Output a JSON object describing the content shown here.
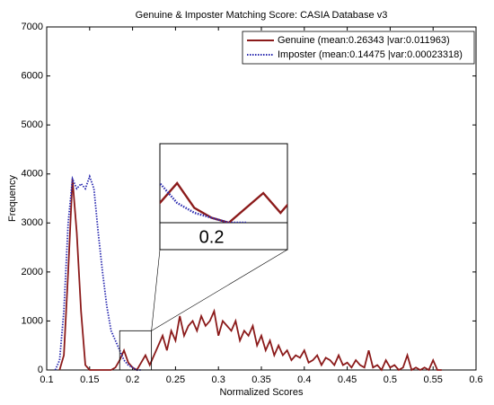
{
  "chart_data": {
    "type": "line",
    "title": "Genuine & Imposter Matching Score: CASIA Database v3",
    "x_label": "Normalized Scores",
    "y_label": "Frequency",
    "x": [
      0.1,
      0.105,
      0.11,
      0.115,
      0.12,
      0.125,
      0.13,
      0.135,
      0.14,
      0.145,
      0.15,
      0.155,
      0.16,
      0.165,
      0.17,
      0.175,
      0.18,
      0.185,
      0.19,
      0.195,
      0.2,
      0.205,
      0.21,
      0.215,
      0.22,
      0.225,
      0.23,
      0.235,
      0.24,
      0.245,
      0.25,
      0.255,
      0.26,
      0.265,
      0.27,
      0.275,
      0.28,
      0.285,
      0.29,
      0.295,
      0.3,
      0.305,
      0.31,
      0.315,
      0.32,
      0.325,
      0.33,
      0.335,
      0.34,
      0.345,
      0.35,
      0.355,
      0.36,
      0.365,
      0.37,
      0.375,
      0.38,
      0.385,
      0.39,
      0.395,
      0.4,
      0.405,
      0.41,
      0.415,
      0.42,
      0.425,
      0.43,
      0.435,
      0.44,
      0.445,
      0.45,
      0.455,
      0.46,
      0.465,
      0.47,
      0.475,
      0.48,
      0.485,
      0.49,
      0.495,
      0.5,
      0.505,
      0.51,
      0.515,
      0.52,
      0.525,
      0.53,
      0.535,
      0.54,
      0.545,
      0.55,
      0.555,
      0.56
    ],
    "series": [
      {
        "name": "Genuine (mean:0.26343 |var:0.011963)",
        "color": "#8b1a1a",
        "dash": "solid",
        "values": [
          null,
          null,
          null,
          0,
          300,
          2000,
          3900,
          2800,
          1200,
          100,
          0,
          0,
          0,
          0,
          0,
          0,
          50,
          200,
          400,
          150,
          50,
          0,
          150,
          300,
          100,
          300,
          500,
          700,
          400,
          800,
          600,
          1100,
          700,
          900,
          1000,
          800,
          1100,
          900,
          1000,
          1200,
          700,
          1000,
          900,
          800,
          1000,
          600,
          800,
          700,
          900,
          500,
          700,
          400,
          600,
          300,
          500,
          300,
          400,
          200,
          300,
          250,
          400,
          150,
          200,
          300,
          100,
          250,
          200,
          100,
          300,
          100,
          150,
          50,
          200,
          100,
          50,
          400,
          50,
          100,
          0,
          200,
          50,
          100,
          0,
          50,
          300,
          0,
          50,
          0,
          50,
          0,
          200,
          0,
          0
        ]
      },
      {
        "name": "Imposter (mean:0.14475 |var:0.00023318)",
        "color": "#2b2bb0",
        "dash": "dotted",
        "values": [
          null,
          null,
          0,
          200,
          1200,
          3000,
          3900,
          3700,
          3800,
          3700,
          3950,
          3700,
          2800,
          2000,
          1300,
          800,
          600,
          400,
          200,
          100,
          50,
          0,
          0,
          null,
          null,
          null,
          null,
          null,
          null,
          null,
          null,
          null,
          null,
          null,
          null,
          null,
          null,
          null,
          null,
          null,
          null,
          null,
          null,
          null,
          null,
          null,
          null,
          null,
          null,
          null,
          null,
          null,
          null,
          null,
          null,
          null,
          null,
          null,
          null,
          null,
          null,
          null,
          null,
          null,
          null,
          null,
          null,
          null,
          null,
          null,
          null,
          null,
          null,
          null,
          null,
          null,
          null,
          null,
          null,
          null,
          null,
          null,
          null,
          null,
          null,
          null,
          null,
          null,
          null,
          null,
          null,
          null,
          null
        ]
      }
    ],
    "xlim": [
      0.1,
      0.6
    ],
    "xticks": [
      0.1,
      0.15,
      0.2,
      0.25,
      0.3,
      0.35,
      0.4,
      0.45,
      0.5,
      0.55,
      0.6
    ],
    "ylim": [
      0,
      7000
    ],
    "yticks": [
      0,
      1000,
      2000,
      3000,
      4000,
      5000,
      6000,
      7000
    ],
    "legend": "upper right",
    "inset": {
      "xlim": [
        0.185,
        0.222
      ],
      "ylim": [
        0,
        800
      ],
      "xticks": [
        0.2
      ]
    }
  }
}
